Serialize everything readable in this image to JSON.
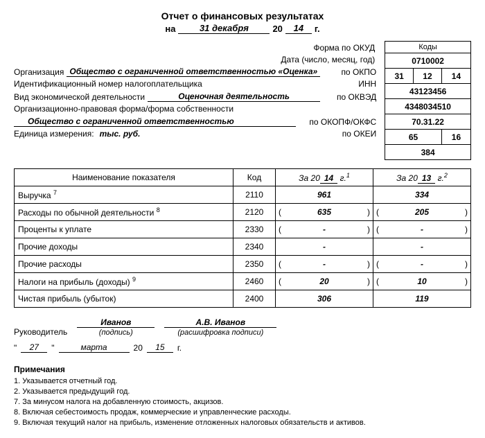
{
  "title": "Отчет о финансовых результатах",
  "title_date_prefix": "на",
  "title_date_value": "31 декабря",
  "title_year_prefix": "20",
  "title_year_value": "14",
  "title_year_suffix": "г.",
  "codes_header": "Коды",
  "okud_label": "Форма по ОКУД",
  "okud_code": "0710002",
  "date_label": "Дата (число, месяц, год)",
  "date_d": "31",
  "date_m": "12",
  "date_y": "14",
  "org_label": "Организация",
  "org_value": "Общество с ограниченной ответственностью «Оценка»",
  "okpo_label": "по ОКПО",
  "okpo_code": "43123456",
  "inn_label": "Идентификационный номер налогоплательщика",
  "inn_code_label": "ИНН",
  "inn_code": "4348034510",
  "activity_label": "Вид экономической деятельности",
  "activity_value": "Оценочная деятельность",
  "okved_label": "по ОКВЭД",
  "okved_code": "70.31.22",
  "legal_form_label": "Организационно-правовая форма/форма собственности",
  "legal_form_value": "Общество с ограниченной ответственностью",
  "okopf_label": "по ОКОПФ/ОКФС",
  "okopf_code1": "65",
  "okopf_code2": "16",
  "unit_label": "Единица измерения:",
  "unit_value": "тыс. руб.",
  "okei_label": "по ОКЕИ",
  "okei_code": "384",
  "table": {
    "headers": {
      "name": "Наименование показателя",
      "code": "Код",
      "y1_prefix": "За 20",
      "y1_val": "14",
      "y1_suffix": "г.",
      "y1_note": "1",
      "y2_prefix": "За 20",
      "y2_val": "13",
      "y2_suffix": "г.",
      "y2_note": "2"
    },
    "rows": [
      {
        "name": "Выручка",
        "note": "7",
        "code": "2110",
        "v1": "961",
        "v1p": false,
        "v2": "334",
        "v2p": false
      },
      {
        "name": "Расходы по обычной деятельности",
        "note": "8",
        "code": "2120",
        "v1": "635",
        "v1p": true,
        "v2": "205",
        "v2p": true
      },
      {
        "name": "Проценты к уплате",
        "note": "",
        "code": "2330",
        "v1": "-",
        "v1p": true,
        "v2": "-",
        "v2p": true
      },
      {
        "name": "Прочие доходы",
        "note": "",
        "code": "2340",
        "v1": "-",
        "v1p": false,
        "v2": "-",
        "v2p": false
      },
      {
        "name": "Прочие расходы",
        "note": "",
        "code": "2350",
        "v1": "-",
        "v1p": true,
        "v2": "-",
        "v2p": true
      },
      {
        "name": "Налоги на прибыль (доходы)",
        "note": "9",
        "code": "2460",
        "v1": "20",
        "v1p": true,
        "v2": "10",
        "v2p": true
      },
      {
        "name": "Чистая прибыль (убыток)",
        "note": "",
        "code": "2400",
        "v1": "306",
        "v1p": false,
        "v2": "119",
        "v2p": false
      }
    ]
  },
  "sign": {
    "role": "Руководитель",
    "signature": "Иванов",
    "signature_cap": "(подпись)",
    "fullname": "А.В. Иванов",
    "fullname_cap": "(расшифровка подписи)",
    "day": "27",
    "month": "марта",
    "year_prefix": "20",
    "year": "15",
    "year_suffix": "г."
  },
  "notes": {
    "header": "Примечания",
    "items": [
      "1. Указывается отчетный год.",
      "2. Указывается предыдущий год.",
      "7. За минусом налога на добавленную стоимость, акцизов.",
      "8. Включая себестоимость продаж, коммерческие и управленческие расходы.",
      "9. Включая текущий налог на прибыль, изменение отложенных налоговых обязательств и активов."
    ]
  }
}
